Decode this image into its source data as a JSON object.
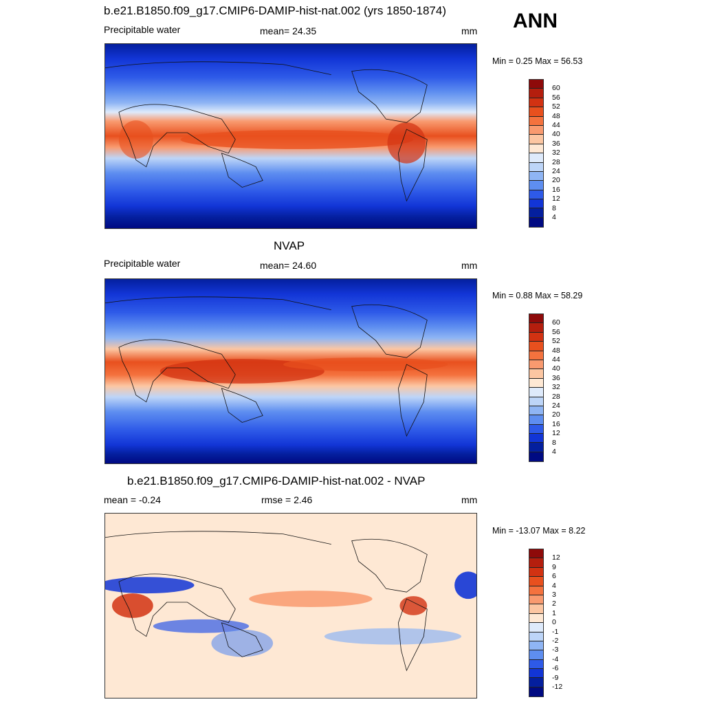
{
  "season": "ANN",
  "panels": [
    {
      "title": "b.e21.B1850.f09_g17.CMIP6-DAMIP-hist-nat.002 (yrs 1850-1874)",
      "left_label": "Precipitable water",
      "center_label": "mean=  24.35",
      "right_label": "mm",
      "minmax": "Min =   0.25 Max =  56.53",
      "colorbar": {
        "levels": [
          "60",
          "56",
          "52",
          "48",
          "44",
          "40",
          "36",
          "32",
          "28",
          "24",
          "20",
          "16",
          "12",
          "8",
          "4"
        ],
        "colors": [
          "#8e0a0a",
          "#b41e0e",
          "#d23212",
          "#e8501e",
          "#f4723e",
          "#f99a6f",
          "#fcc6a2",
          "#fee8d4",
          "#deeafb",
          "#bdd5f8",
          "#8fb5f4",
          "#5e8ef0",
          "#2e5ae8",
          "#1235d6",
          "#041f9e",
          "#000a82"
        ]
      }
    },
    {
      "title": "NVAP",
      "left_label": "Precipitable water",
      "center_label": "mean=  24.60",
      "right_label": "mm",
      "minmax": "Min =   0.88 Max =  58.29",
      "colorbar": {
        "levels": [
          "60",
          "56",
          "52",
          "48",
          "44",
          "40",
          "36",
          "32",
          "28",
          "24",
          "20",
          "16",
          "12",
          "8",
          "4"
        ],
        "colors": [
          "#8e0a0a",
          "#b41e0e",
          "#d23212",
          "#e8501e",
          "#f4723e",
          "#f99a6f",
          "#fcc6a2",
          "#fee8d4",
          "#deeafb",
          "#bdd5f8",
          "#8fb5f4",
          "#5e8ef0",
          "#2e5ae8",
          "#1235d6",
          "#041f9e",
          "#000a82"
        ]
      }
    },
    {
      "title": "b.e21.B1850.f09_g17.CMIP6-DAMIP-hist-nat.002 - NVAP",
      "left_label": "mean =  -0.24",
      "center_label": "rmse =   2.46",
      "right_label": "mm",
      "minmax": "Min = -13.07 Max =   8.22",
      "colorbar": {
        "levels": [
          "12",
          "9",
          "6",
          "4",
          "3",
          "2",
          "1",
          "0",
          "-1",
          "-2",
          "-3",
          "-4",
          "-6",
          "-9",
          "-12"
        ],
        "colors": [
          "#8e0a0a",
          "#b41e0e",
          "#d23212",
          "#e8501e",
          "#f4723e",
          "#f99a6f",
          "#fcc6a2",
          "#fee8d4",
          "#deeafb",
          "#bdd5f8",
          "#8fb5f4",
          "#5e8ef0",
          "#2e5ae8",
          "#1235d6",
          "#041f9e",
          "#000a82"
        ]
      }
    }
  ]
}
